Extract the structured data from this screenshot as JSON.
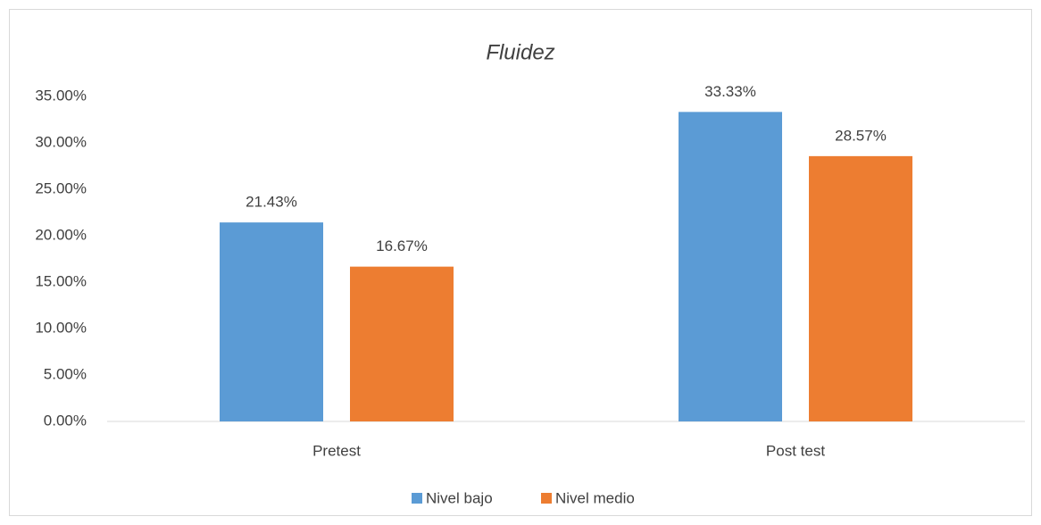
{
  "chart_data": {
    "type": "bar",
    "title": "Fluidez",
    "categories": [
      "Pretest",
      "Post test"
    ],
    "series": [
      {
        "name": "Nivel bajo",
        "color": "#5b9bd5",
        "values": [
          21.43,
          33.33
        ],
        "value_labels": [
          "21.43%",
          "33.33%"
        ]
      },
      {
        "name": "Nivel medio",
        "color": "#ed7d31",
        "values": [
          16.67,
          28.57
        ],
        "value_labels": [
          "16.67%",
          "28.57%"
        ]
      }
    ],
    "ylim": [
      0,
      35
    ],
    "yticks": [
      {
        "value": 0,
        "label": "0.00%"
      },
      {
        "value": 5,
        "label": "5.00%"
      },
      {
        "value": 10,
        "label": "10.00%"
      },
      {
        "value": 15,
        "label": "15.00%"
      },
      {
        "value": 20,
        "label": "20.00%"
      },
      {
        "value": 25,
        "label": "25.00%"
      },
      {
        "value": 30,
        "label": "30.00%"
      },
      {
        "value": 35,
        "label": "35.00%"
      }
    ],
    "grid": false,
    "legend": "bottom"
  }
}
